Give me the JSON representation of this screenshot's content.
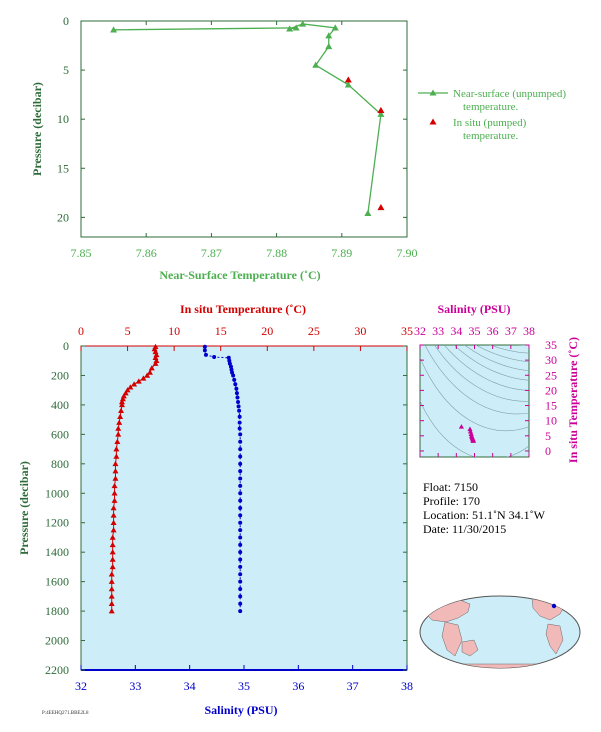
{
  "colors": {
    "green": "#4caf50",
    "green_dark": "#2e6b3a",
    "red": "#d40000",
    "blue": "#0000cc",
    "magenta": "#cc0099",
    "panel_bg": "#cdeef8"
  },
  "chart_data": [
    {
      "type": "line",
      "xlabel": "Near-Surface Temperature (˚C)",
      "ylabel": "Pressure (decibar)",
      "xlim": [
        7.85,
        7.9
      ],
      "ylim": [
        22,
        0
      ],
      "xticks": [
        "7.85",
        "7.86",
        "7.87",
        "7.88",
        "7.89",
        "7.90"
      ],
      "yticks": [
        "0",
        "5",
        "10",
        "15",
        "20"
      ],
      "series": [
        {
          "name": "Near-surface (unpumped) temperature.",
          "points": [
            [
              7.855,
              0.9
            ],
            [
              7.883,
              0.7
            ],
            [
              7.882,
              0.8
            ],
            [
              7.884,
              0.3
            ],
            [
              7.889,
              0.7
            ],
            [
              7.888,
              1.5
            ],
            [
              7.888,
              2.6
            ],
            [
              7.886,
              4.5
            ],
            [
              7.891,
              6.5
            ],
            [
              7.896,
              9.5
            ],
            [
              7.894,
              19.6
            ]
          ]
        },
        {
          "name": "In situ (pumped) temperature.",
          "points": [
            [
              7.891,
              6.0
            ],
            [
              7.896,
              9.1
            ],
            [
              7.896,
              19.0
            ]
          ]
        }
      ]
    },
    {
      "type": "line",
      "xlabel": "Salinity (PSU)",
      "top_xlabel": "In situ Temperature (˚C)",
      "ylabel": "Pressure (decibar)",
      "xlim": [
        32,
        38
      ],
      "top_xlim": [
        0,
        35
      ],
      "ylim": [
        2200,
        0
      ],
      "xticks": [
        "32",
        "33",
        "34",
        "35",
        "36",
        "37",
        "38"
      ],
      "top_xticks": [
        "0",
        "5",
        "10",
        "15",
        "20",
        "25",
        "30",
        "35"
      ],
      "yticks": [
        "0",
        "200",
        "400",
        "600",
        "800",
        "1000",
        "1200",
        "1400",
        "1600",
        "1800",
        "2000",
        "2200"
      ],
      "series": [
        {
          "name": "Temperature",
          "points": [
            [
              8.0,
              5
            ],
            [
              7.9,
              20
            ],
            [
              8.0,
              40
            ],
            [
              8.1,
              60
            ],
            [
              8.0,
              80
            ],
            [
              8.1,
              100
            ],
            [
              8.0,
              120
            ],
            [
              7.6,
              150
            ],
            [
              7.4,
              180
            ],
            [
              7.1,
              200
            ],
            [
              6.7,
              220
            ],
            [
              6.2,
              240
            ],
            [
              5.7,
              260
            ],
            [
              5.3,
              280
            ],
            [
              5.0,
              300
            ],
            [
              4.8,
              320
            ],
            [
              4.6,
              340
            ],
            [
              4.5,
              360
            ],
            [
              4.4,
              380
            ],
            [
              4.4,
              400
            ],
            [
              4.3,
              440
            ],
            [
              4.2,
              480
            ],
            [
              4.1,
              520
            ],
            [
              4.0,
              560
            ],
            [
              4.0,
              600
            ],
            [
              3.9,
              650
            ],
            [
              3.8,
              700
            ],
            [
              3.8,
              750
            ],
            [
              3.7,
              800
            ],
            [
              3.7,
              850
            ],
            [
              3.7,
              900
            ],
            [
              3.6,
              950
            ],
            [
              3.6,
              1000
            ],
            [
              3.6,
              1050
            ],
            [
              3.5,
              1100
            ],
            [
              3.5,
              1150
            ],
            [
              3.5,
              1200
            ],
            [
              3.5,
              1250
            ],
            [
              3.4,
              1300
            ],
            [
              3.4,
              1350
            ],
            [
              3.4,
              1400
            ],
            [
              3.4,
              1450
            ],
            [
              3.4,
              1500
            ],
            [
              3.3,
              1550
            ],
            [
              3.3,
              1600
            ],
            [
              3.3,
              1650
            ],
            [
              3.3,
              1700
            ],
            [
              3.3,
              1750
            ],
            [
              3.3,
              1800
            ]
          ]
        },
        {
          "name": "Salinity",
          "points": [
            [
              34.28,
              5
            ],
            [
              34.28,
              30
            ],
            [
              34.3,
              60
            ],
            [
              34.45,
              75
            ],
            [
              34.72,
              80
            ],
            [
              34.73,
              100
            ],
            [
              34.74,
              120
            ],
            [
              34.76,
              140
            ],
            [
              34.77,
              160
            ],
            [
              34.78,
              180
            ],
            [
              34.8,
              200
            ],
            [
              34.82,
              230
            ],
            [
              34.84,
              260
            ],
            [
              34.86,
              290
            ],
            [
              34.87,
              320
            ],
            [
              34.88,
              350
            ],
            [
              34.89,
              380
            ],
            [
              34.9,
              410
            ],
            [
              34.91,
              440
            ],
            [
              34.92,
              480
            ],
            [
              34.92,
              520
            ],
            [
              34.92,
              560
            ],
            [
              34.93,
              600
            ],
            [
              34.93,
              650
            ],
            [
              34.93,
              700
            ],
            [
              34.93,
              750
            ],
            [
              34.93,
              800
            ],
            [
              34.93,
              850
            ],
            [
              34.93,
              900
            ],
            [
              34.93,
              950
            ],
            [
              34.93,
              1000
            ],
            [
              34.93,
              1050
            ],
            [
              34.93,
              1100
            ],
            [
              34.93,
              1150
            ],
            [
              34.93,
              1200
            ],
            [
              34.93,
              1250
            ],
            [
              34.93,
              1300
            ],
            [
              34.93,
              1350
            ],
            [
              34.93,
              1400
            ],
            [
              34.93,
              1450
            ],
            [
              34.93,
              1500
            ],
            [
              34.93,
              1550
            ],
            [
              34.93,
              1600
            ],
            [
              34.93,
              1650
            ],
            [
              34.93,
              1700
            ],
            [
              34.93,
              1750
            ],
            [
              34.93,
              1800
            ]
          ]
        }
      ]
    },
    {
      "type": "scatter",
      "xlabel": "Salinity (PSU)",
      "ylabel": "In situ Temperature (˚C)",
      "xlim": [
        32,
        38
      ],
      "ylim": [
        -2,
        35
      ],
      "xticks": [
        "32",
        "33",
        "34",
        "35",
        "36",
        "37",
        "38"
      ],
      "yticks": [
        "0",
        "5",
        "10",
        "15",
        "20",
        "25",
        "30",
        "35"
      ],
      "points": [
        [
          34.28,
          8.0
        ],
        [
          34.75,
          7.2
        ],
        [
          34.78,
          6.4
        ],
        [
          34.82,
          5.6
        ],
        [
          34.84,
          5.0
        ],
        [
          34.86,
          4.6
        ],
        [
          34.88,
          4.3
        ],
        [
          34.9,
          4.0
        ],
        [
          34.92,
          3.8
        ],
        [
          34.93,
          3.6
        ],
        [
          34.93,
          3.4
        ],
        [
          34.93,
          3.3
        ]
      ]
    }
  ],
  "info": {
    "float": "Float:  7150",
    "profile": "Profile:  170",
    "location": "Location:  51.1˚N  34.1˚W",
    "date": "Date:  11/30/2015"
  },
  "footer_text": "P:4EEHQ271.BBE2L8"
}
